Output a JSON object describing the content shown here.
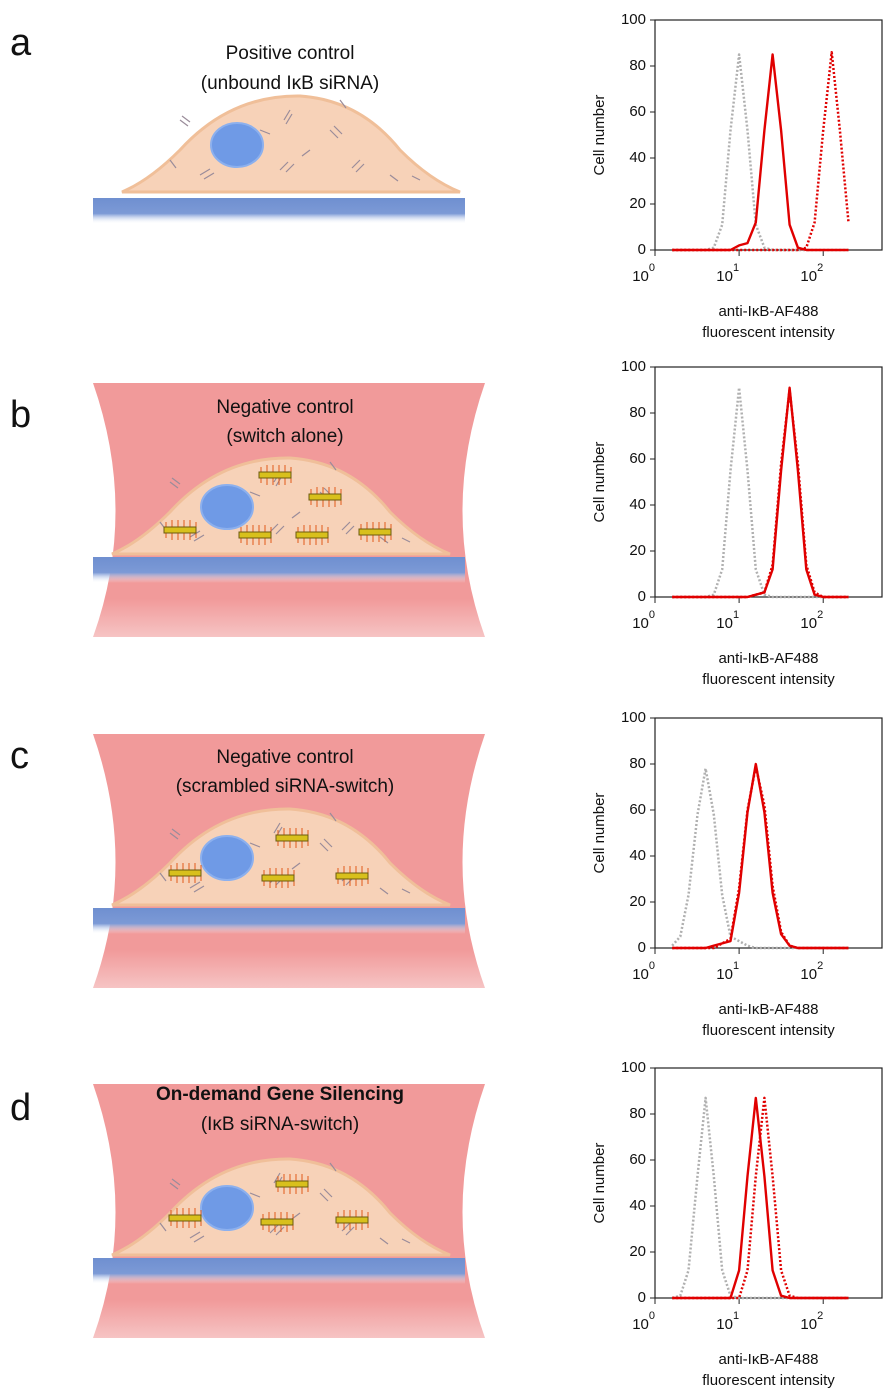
{
  "panels": [
    {
      "letter": "a",
      "caption": "Positive control",
      "subcaption": "(unbound IκB siRNA)"
    },
    {
      "letter": "b",
      "caption": "Negative control",
      "subcaption": "(switch alone)"
    },
    {
      "letter": "c",
      "caption": "Negative control",
      "subcaption": "(scrambled siRNA-switch)"
    },
    {
      "letter": "d",
      "caption": "On-demand Gene Silencing",
      "subcaption": "(IκB siRNA-switch)"
    }
  ],
  "chart_data": [
    {
      "type": "line",
      "ylabel": "Cell number",
      "xlabel": [
        "anti-IκB-AF488",
        "fluorescent intensity"
      ],
      "xscale": "log",
      "xlim": [
        1,
        500
      ],
      "ylim": [
        0,
        100
      ],
      "xticks": [
        {
          "value": 1,
          "label": "10",
          "exponent": "0"
        },
        {
          "value": 10,
          "label": "10",
          "exponent": "1"
        },
        {
          "value": 100,
          "label": "10",
          "exponent": "2"
        }
      ],
      "yticks": [
        0,
        20,
        40,
        60,
        80,
        100
      ],
      "x": [
        1.6,
        2,
        2.5,
        3.2,
        4,
        5,
        6.3,
        7.9,
        10,
        12.6,
        15.8,
        20,
        25,
        31.6,
        39.8,
        50,
        63,
        79,
        100,
        126,
        158,
        200
      ],
      "series": [
        {
          "color": "#b0b0b0",
          "style": "dotted",
          "values": [
            0,
            0,
            0,
            0,
            0,
            1,
            11,
            52,
            85,
            52,
            11,
            1,
            0,
            0,
            0,
            0,
            0,
            0,
            0,
            0,
            0,
            0
          ]
        },
        {
          "color": "#e00000",
          "style": "solid",
          "values": [
            0,
            0,
            0,
            0,
            0,
            0,
            0,
            0,
            2,
            3,
            12,
            52,
            85,
            52,
            11,
            1,
            0,
            0,
            0,
            0,
            0,
            0
          ]
        },
        {
          "color": "#e00000",
          "style": "dotted",
          "values": [
            0,
            0,
            0,
            0,
            0,
            0,
            0,
            0,
            0,
            0,
            0,
            0,
            0,
            0,
            0,
            0,
            1,
            12,
            52,
            86,
            52,
            12
          ]
        }
      ]
    },
    {
      "type": "line",
      "ylabel": "Cell number",
      "xlabel": [
        "anti-IκB-AF488",
        "fluorescent intensity"
      ],
      "xscale": "log",
      "xlim": [
        1,
        500
      ],
      "ylim": [
        0,
        100
      ],
      "xticks": [
        {
          "value": 1,
          "label": "10",
          "exponent": "0"
        },
        {
          "value": 10,
          "label": "10",
          "exponent": "1"
        },
        {
          "value": 100,
          "label": "10",
          "exponent": "2"
        }
      ],
      "yticks": [
        0,
        20,
        40,
        60,
        80,
        100
      ],
      "x": [
        1.6,
        2,
        2.5,
        3.2,
        4,
        5,
        6.3,
        7.9,
        10,
        12.6,
        15.8,
        20,
        25,
        31.6,
        39.8,
        50,
        63,
        79,
        100,
        126,
        158,
        200
      ],
      "series": [
        {
          "color": "#b0b0b0",
          "style": "dotted",
          "values": [
            0,
            0,
            0,
            0,
            0,
            1,
            12,
            55,
            91,
            55,
            12,
            1,
            0,
            0,
            0,
            0,
            0,
            0,
            0,
            0,
            0,
            0
          ]
        },
        {
          "color": "#e00000",
          "style": "solid",
          "values": [
            0,
            0,
            0,
            0,
            0,
            0,
            0,
            0,
            0,
            0,
            1,
            2,
            12,
            55,
            91,
            55,
            12,
            1,
            0,
            0,
            0,
            0
          ]
        },
        {
          "color": "#e00000",
          "style": "dotted",
          "values": [
            0,
            0,
            0,
            0,
            0,
            0,
            0,
            0,
            0,
            0,
            1,
            2,
            14,
            58,
            90,
            58,
            14,
            2,
            0,
            0,
            0,
            0
          ]
        }
      ]
    },
    {
      "type": "line",
      "ylabel": "Cell number",
      "xlabel": [
        "anti-IκB-AF488",
        "fluorescent intensity"
      ],
      "xscale": "log",
      "xlim": [
        1,
        500
      ],
      "ylim": [
        0,
        100
      ],
      "xticks": [
        {
          "value": 1,
          "label": "10",
          "exponent": "0"
        },
        {
          "value": 10,
          "label": "10",
          "exponent": "1"
        },
        {
          "value": 100,
          "label": "10",
          "exponent": "2"
        }
      ],
      "yticks": [
        0,
        20,
        40,
        60,
        80,
        100
      ],
      "x": [
        1.6,
        2,
        2.5,
        3.2,
        4,
        5,
        6.3,
        7.9,
        10,
        12.6,
        15.8,
        20,
        25,
        31.6,
        39.8,
        50,
        63,
        79,
        100,
        126,
        158,
        200
      ],
      "series": [
        {
          "color": "#b0b0b0",
          "style": "dotted",
          "values": [
            1,
            5,
            23,
            58,
            78,
            58,
            23,
            5,
            3,
            1,
            0,
            0,
            0,
            0,
            0,
            0,
            0,
            0,
            0,
            0,
            0,
            0
          ]
        },
        {
          "color": "#e00000",
          "style": "solid",
          "values": [
            0,
            0,
            0,
            0,
            0,
            1,
            2,
            3,
            24,
            59,
            80,
            59,
            24,
            6,
            1,
            0,
            0,
            0,
            0,
            0,
            0,
            0
          ]
        },
        {
          "color": "#e00000",
          "style": "dotted",
          "values": [
            0,
            0,
            0,
            0,
            0,
            0,
            2,
            4,
            26,
            60,
            79,
            62,
            27,
            7,
            1,
            0,
            0,
            0,
            0,
            0,
            0,
            0
          ]
        }
      ]
    },
    {
      "type": "line",
      "ylabel": "Cell number",
      "xlabel": [
        "anti-IκB-AF488",
        "fluorescent intensity"
      ],
      "xscale": "log",
      "xlim": [
        1,
        500
      ],
      "ylim": [
        0,
        100
      ],
      "xticks": [
        {
          "value": 1,
          "label": "10",
          "exponent": "0"
        },
        {
          "value": 10,
          "label": "10",
          "exponent": "1"
        },
        {
          "value": 100,
          "label": "10",
          "exponent": "2"
        }
      ],
      "yticks": [
        0,
        20,
        40,
        60,
        80,
        100
      ],
      "x": [
        1.6,
        2,
        2.5,
        3.2,
        4,
        5,
        6.3,
        7.9,
        10,
        12.6,
        15.8,
        20,
        25,
        31.6,
        39.8,
        50,
        63,
        79,
        100,
        126,
        158,
        200
      ],
      "series": [
        {
          "color": "#b0b0b0",
          "style": "dotted",
          "values": [
            0,
            1,
            12,
            53,
            87,
            53,
            12,
            1,
            0,
            0,
            0,
            0,
            0,
            0,
            0,
            0,
            0,
            0,
            0,
            0,
            0,
            0
          ]
        },
        {
          "color": "#e00000",
          "style": "solid",
          "values": [
            0,
            0,
            0,
            0,
            0,
            0,
            0,
            0,
            12,
            53,
            87,
            53,
            12,
            1,
            0,
            0,
            0,
            0,
            0,
            0,
            0,
            0
          ]
        },
        {
          "color": "#e00000",
          "style": "dotted",
          "values": [
            0,
            0,
            0,
            0,
            0,
            0,
            0,
            0,
            0,
            12,
            53,
            87,
            53,
            12,
            1,
            0,
            0,
            0,
            0,
            0,
            0,
            0
          ]
        }
      ]
    }
  ]
}
